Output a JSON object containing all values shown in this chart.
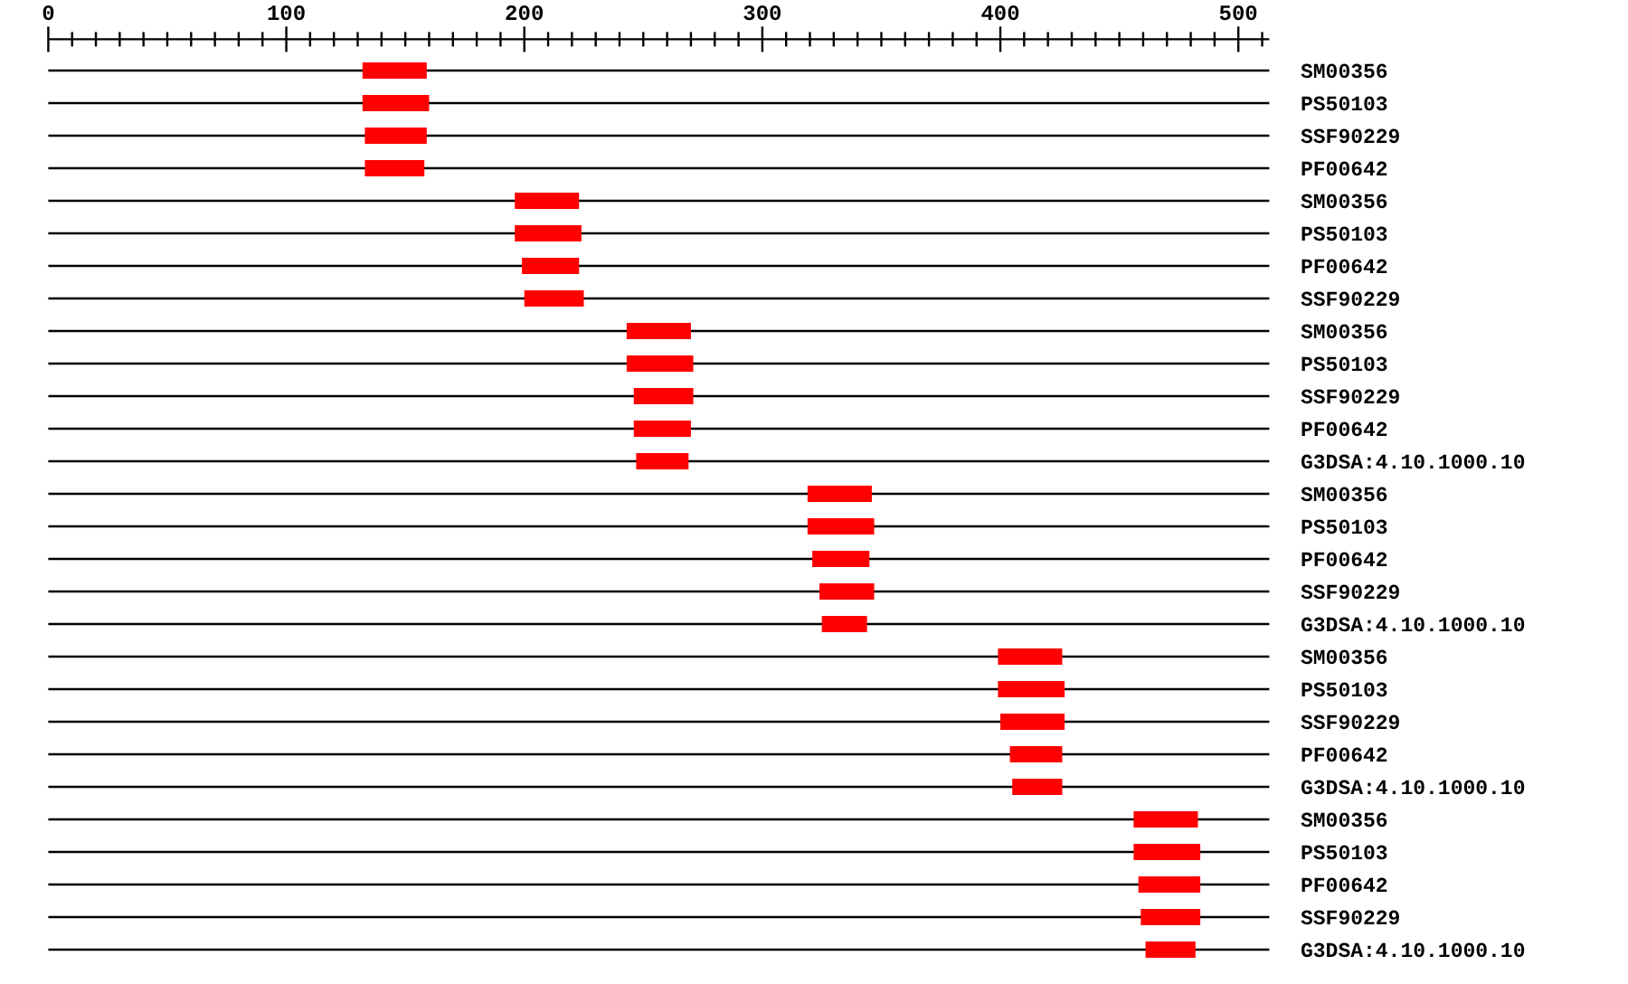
{
  "chart_data": {
    "type": "bar",
    "orientation": "horizontal",
    "categories": [
      "SM00356",
      "PS50103",
      "SSF90229",
      "PF00642",
      "SM00356",
      "PS50103",
      "PF00642",
      "SSF90229",
      "SM00356",
      "PS50103",
      "SSF90229",
      "PF00642",
      "G3DSA:4.10.1000.10",
      "SM00356",
      "PS50103",
      "PF00642",
      "SSF90229",
      "G3DSA:4.10.1000.10",
      "SM00356",
      "PS50103",
      "SSF90229",
      "PF00642",
      "G3DSA:4.10.1000.10",
      "SM00356",
      "PS50103",
      "PF00642",
      "SSF90229",
      "G3DSA:4.10.1000.10"
    ],
    "base": [
      132,
      132,
      133,
      133,
      196,
      196,
      199,
      200,
      243,
      243,
      246,
      246,
      247,
      319,
      319,
      321,
      324,
      325,
      399,
      399,
      400,
      404,
      405,
      456,
      456,
      458,
      459,
      461
    ],
    "values": [
      27,
      28,
      26,
      25,
      27,
      28,
      24,
      25,
      27,
      28,
      25,
      24,
      22,
      27,
      28,
      24,
      23,
      19,
      27,
      28,
      27,
      22,
      21,
      27,
      28,
      26,
      25,
      21
    ],
    "color": "#ff0000",
    "xlim": [
      0,
      513
    ],
    "xticks": [
      0,
      {
        "value": 10,
        "label": null
      },
      {
        "value": 20,
        "label": null
      },
      {
        "value": 30,
        "label": null
      },
      {
        "value": 40,
        "label": null
      },
      {
        "value": 50,
        "label": null
      },
      {
        "value": 60,
        "label": null
      },
      {
        "value": 70,
        "label": null
      },
      {
        "value": 80,
        "label": null
      },
      {
        "value": 90,
        "label": null
      },
      100,
      {
        "value": 110,
        "label": null
      },
      {
        "value": 120,
        "label": null
      },
      {
        "value": 130,
        "label": null
      },
      {
        "value": 140,
        "label": null
      },
      {
        "value": 150,
        "label": null
      },
      {
        "value": 160,
        "label": null
      },
      {
        "value": 170,
        "label": null
      },
      {
        "value": 180,
        "label": null
      },
      {
        "value": 190,
        "label": null
      },
      200,
      {
        "value": 210,
        "label": null
      },
      {
        "value": 220,
        "label": null
      },
      {
        "value": 230,
        "label": null
      },
      {
        "value": 240,
        "label": null
      },
      {
        "value": 250,
        "label": null
      },
      {
        "value": 260,
        "label": null
      },
      {
        "value": 270,
        "label": null
      },
      {
        "value": 280,
        "label": null
      },
      {
        "value": 290,
        "label": null
      },
      300,
      {
        "value": 310,
        "label": null
      },
      {
        "value": 320,
        "label": null
      },
      {
        "value": 330,
        "label": null
      },
      {
        "value": 340,
        "label": null
      },
      {
        "value": 350,
        "label": null
      },
      {
        "value": 360,
        "label": null
      },
      {
        "value": 370,
        "label": null
      },
      {
        "value": 380,
        "label": null
      },
      {
        "value": 390,
        "label": null
      },
      400,
      {
        "value": 410,
        "label": null
      },
      {
        "value": 420,
        "label": null
      },
      {
        "value": 430,
        "label": null
      },
      {
        "value": 440,
        "label": null
      },
      {
        "value": 450,
        "label": null
      },
      {
        "value": 460,
        "label": null
      },
      {
        "value": 470,
        "label": null
      },
      {
        "value": 480,
        "label": null
      },
      {
        "value": 490,
        "label": null
      },
      500,
      {
        "value": 510,
        "label": null
      }
    ],
    "grid": "y"
  }
}
